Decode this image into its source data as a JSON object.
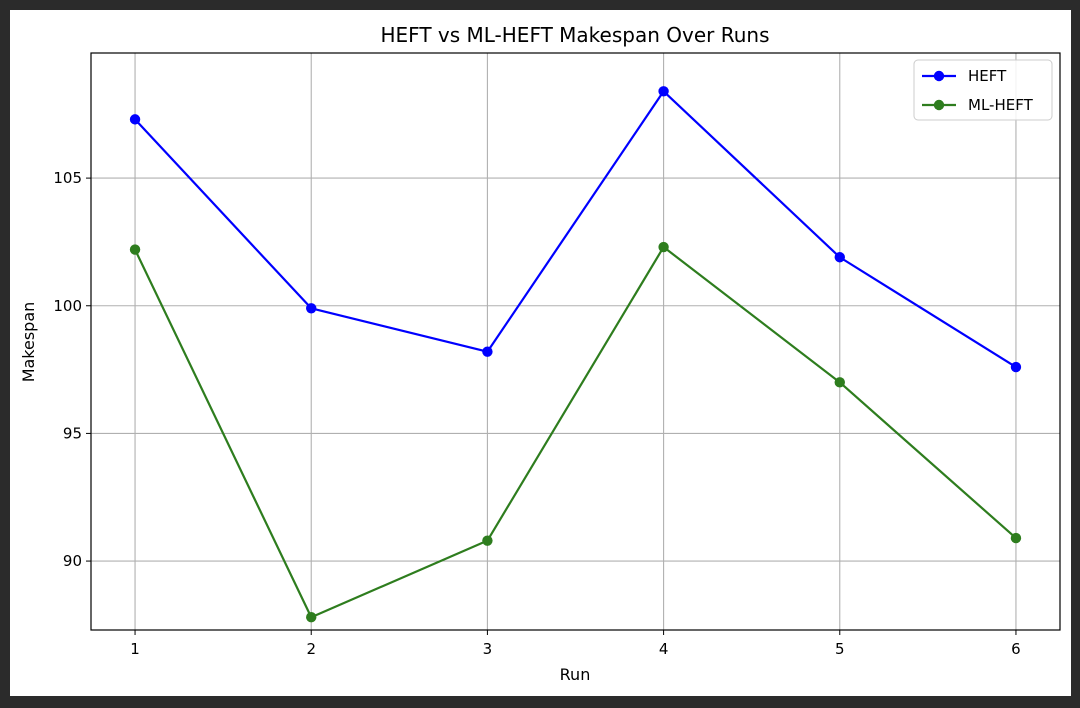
{
  "chart_data": {
    "type": "line",
    "title": "HEFT vs ML-HEFT Makespan Over Runs",
    "xlabel": "Run",
    "ylabel": "Makespan",
    "x": [
      1,
      2,
      3,
      4,
      5,
      6
    ],
    "xlim": [
      0.75,
      6.25
    ],
    "ylim": [
      87.3,
      109.9
    ],
    "x_ticks": [
      1,
      2,
      3,
      4,
      5,
      6
    ],
    "y_ticks": [
      90,
      95,
      100,
      105
    ],
    "grid": true,
    "legend_position": "top-right",
    "series": [
      {
        "name": "HEFT",
        "color": "#0000ff",
        "marker": "circle",
        "values": [
          107.3,
          99.9,
          98.2,
          108.4,
          101.9,
          97.6
        ]
      },
      {
        "name": "ML-HEFT",
        "color": "#2e7d1e",
        "marker": "circle",
        "values": [
          102.2,
          87.8,
          90.8,
          102.3,
          97.0,
          90.9
        ]
      }
    ]
  }
}
